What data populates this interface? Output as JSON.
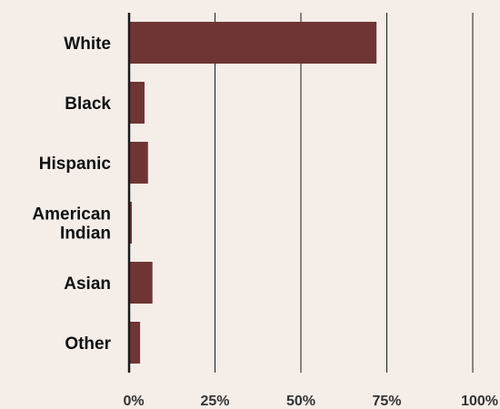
{
  "chart_data": {
    "type": "bar",
    "orientation": "horizontal",
    "categories": [
      [
        "White"
      ],
      [
        "Black"
      ],
      [
        "Hispanic"
      ],
      [
        "American",
        "Indian"
      ],
      [
        "Asian"
      ],
      [
        "Other"
      ]
    ],
    "values": [
      72,
      4.5,
      5.5,
      0.8,
      6.8,
      3.2
    ],
    "xlim": [
      0,
      100
    ],
    "xticks": [
      0,
      25,
      50,
      75,
      100
    ],
    "xtick_labels": [
      "0%",
      "25%",
      "50%",
      "75%",
      "100%"
    ],
    "title": "",
    "xlabel": "",
    "ylabel": "",
    "grid": "vertical",
    "legend": "none",
    "colors": {
      "bar": "#6f3535",
      "grid": "#1a1a1a",
      "background": "#f5ede8"
    }
  }
}
